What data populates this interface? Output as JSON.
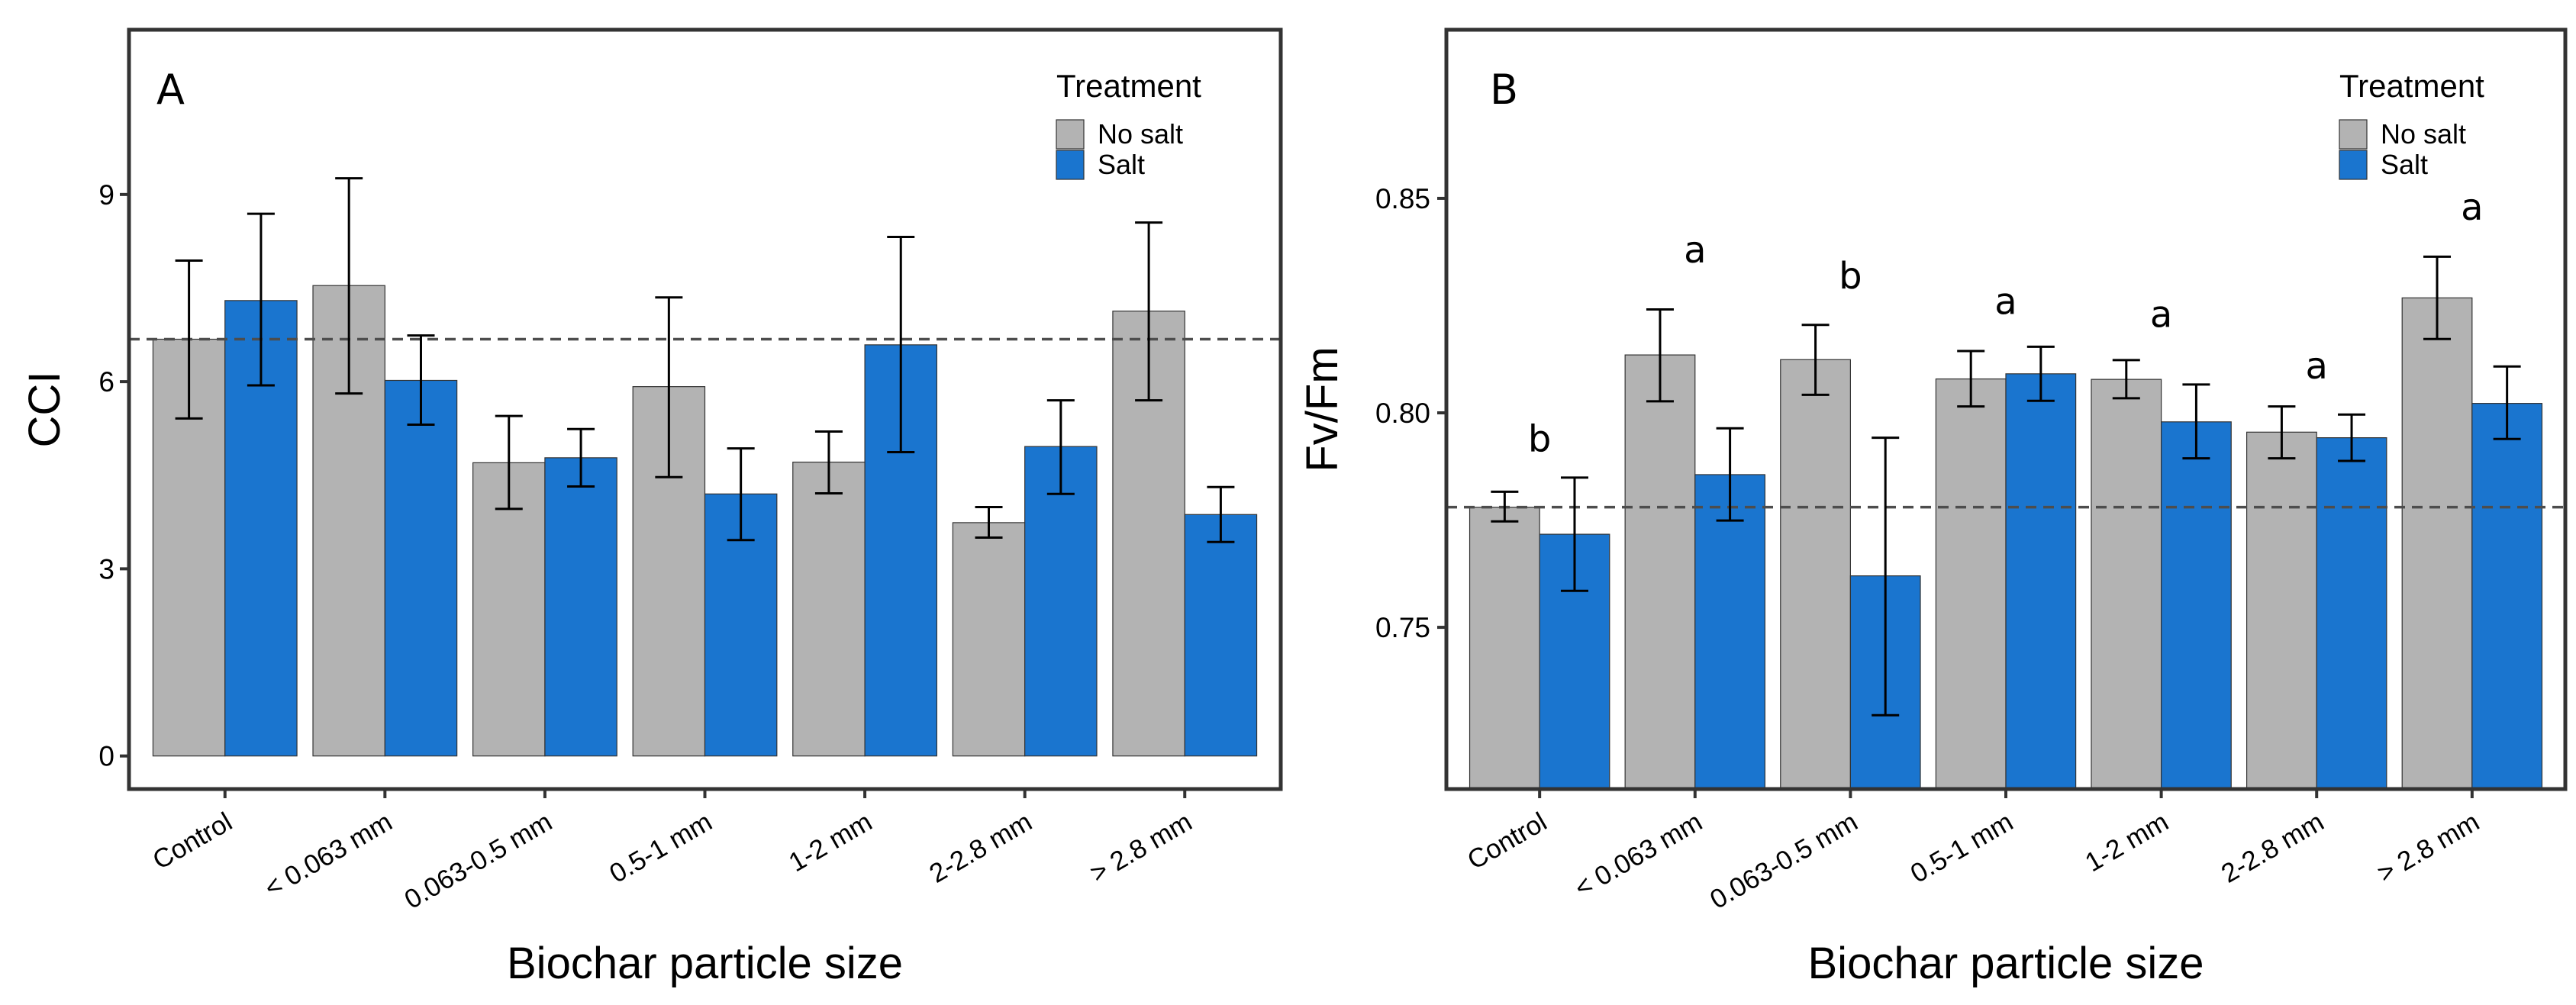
{
  "colors": {
    "no_salt": "#b3b3b3",
    "salt": "#1a75cf",
    "reference_line": "#4d4d4d",
    "frame": "#333333"
  },
  "chart_data": [
    {
      "type": "bar",
      "panel_label": "A",
      "xlabel": "Biochar particle size",
      "ylabel": "CCI",
      "ylim": [
        -0.53,
        11.64
      ],
      "yticks": [
        0,
        3,
        6,
        9
      ],
      "ytick_labels": [
        "0",
        "3",
        "6",
        "9"
      ],
      "grid": false,
      "legend": {
        "title": "Treatment",
        "placement": "top-right",
        "entries": [
          "No salt",
          "Salt"
        ]
      },
      "reference_line": 6.68,
      "categories": [
        "Control",
        "< 0.063 mm",
        "0.063-0.5 mm",
        "0.5-1 mm",
        "1-2 mm",
        "2-2.8 mm",
        "> 2.8 mm"
      ],
      "series": [
        {
          "name": "No salt",
          "values": [
            6.68,
            7.54,
            4.7,
            5.92,
            4.71,
            3.74,
            7.13
          ],
          "err_low": [
            5.41,
            5.81,
            3.96,
            4.47,
            4.21,
            3.5,
            5.7
          ],
          "err_high": [
            7.94,
            9.26,
            5.45,
            7.35,
            5.2,
            3.99,
            8.55
          ]
        },
        {
          "name": "Salt",
          "values": [
            7.3,
            6.02,
            4.78,
            4.2,
            6.59,
            4.96,
            3.87
          ],
          "err_low": [
            5.94,
            5.31,
            4.32,
            3.46,
            4.87,
            4.2,
            3.43
          ],
          "err_high": [
            8.69,
            6.74,
            5.24,
            4.93,
            8.32,
            5.7,
            4.31
          ]
        }
      ],
      "annotations": []
    },
    {
      "type": "bar",
      "panel_label": "B",
      "xlabel": "Biochar particle size",
      "ylabel": "Fv/Fm",
      "ylim": [
        0.7123,
        0.8893
      ],
      "yticks": [
        0.75,
        0.8,
        0.85
      ],
      "ytick_labels": [
        "0.75",
        "0.80",
        "0.85"
      ],
      "grid": false,
      "legend": {
        "title": "Treatment",
        "placement": "top-right",
        "entries": [
          "No salt",
          "Salt"
        ]
      },
      "reference_line": 0.778,
      "categories": [
        "Control",
        "< 0.063 mm",
        "0.063-0.5 mm",
        "0.5-1 mm",
        "1-2 mm",
        "2-2.8 mm",
        "> 2.8 mm"
      ],
      "series": [
        {
          "name": "No salt",
          "values": [
            0.778,
            0.8135,
            0.8124,
            0.8079,
            0.8078,
            0.7955,
            0.8268
          ],
          "err_low": [
            0.7747,
            0.8027,
            0.8042,
            0.8015,
            0.8034,
            0.7894,
            0.8172
          ],
          "err_high": [
            0.7816,
            0.8241,
            0.8205,
            0.8144,
            0.8123,
            0.8015,
            0.8364
          ]
        },
        {
          "name": "Salt",
          "values": [
            0.7717,
            0.7856,
            0.762,
            0.8091,
            0.7979,
            0.7942,
            0.8022
          ],
          "err_low": [
            0.7585,
            0.7749,
            0.7295,
            0.8028,
            0.7894,
            0.7888,
            0.7939
          ],
          "err_high": [
            0.7849,
            0.7964,
            0.7942,
            0.8154,
            0.8066,
            0.7996,
            0.8108
          ]
        }
      ],
      "annotations": [
        {
          "category": "Control",
          "text": "b",
          "y": 0.791
        },
        {
          "category": "< 0.063 mm",
          "text": "a",
          "y": 0.835
        },
        {
          "category": "0.063-0.5 mm",
          "text": "b",
          "y": 0.829
        },
        {
          "category": "0.5-1 mm",
          "text": "a",
          "y": 0.823
        },
        {
          "category": "1-2 mm",
          "text": "a",
          "y": 0.82
        },
        {
          "category": "2-2.8 mm",
          "text": "a",
          "y": 0.808
        },
        {
          "category": "> 2.8 mm",
          "text": "a",
          "y": 0.845
        }
      ]
    }
  ]
}
